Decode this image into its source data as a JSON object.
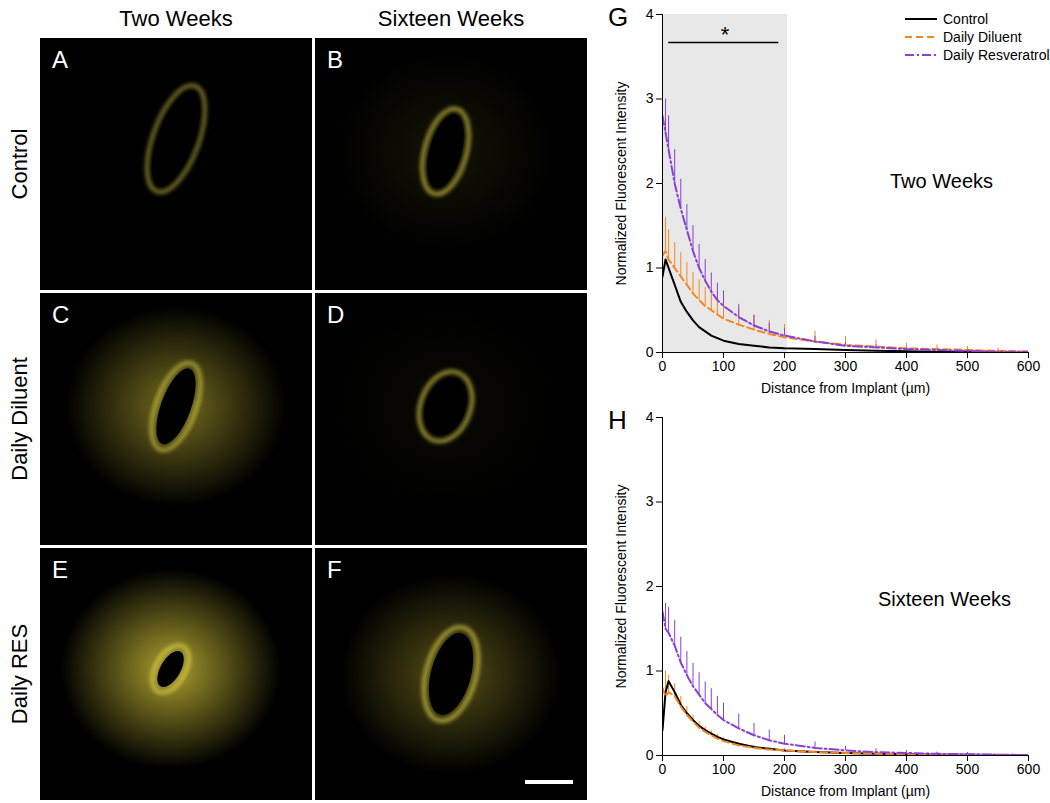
{
  "image_panels": {
    "column_titles": [
      "Two Weeks",
      "Sixteen Weeks"
    ],
    "row_titles": [
      "Control",
      "Daily Diluent",
      "Daily RES"
    ],
    "panel_labels": [
      [
        "A",
        "B"
      ],
      [
        "C",
        "D"
      ],
      [
        "E",
        "F"
      ]
    ]
  },
  "chart_data": [
    {
      "type": "line",
      "title": "G",
      "subtitle": "Two Weeks",
      "xlabel": "Distance from Implant (µm)",
      "ylabel": "Normalized Fluorescent Intensity",
      "x": [
        0,
        5,
        10,
        20,
        30,
        40,
        50,
        60,
        70,
        80,
        90,
        100,
        125,
        150,
        175,
        200,
        250,
        300,
        350,
        400,
        450,
        500,
        550,
        600
      ],
      "xlim": [
        0,
        600
      ],
      "xticks": [
        0,
        100,
        200,
        300,
        400,
        500,
        600
      ],
      "ylim": [
        0,
        4
      ],
      "yticks": [
        0,
        1,
        2,
        3,
        4
      ],
      "legend": "top-right",
      "significance": {
        "label": "*",
        "x_range": [
          0,
          205
        ]
      },
      "series": [
        {
          "name": "Control",
          "color": "#000000",
          "line_style": "solid",
          "values": [
            0.9,
            1.1,
            1.0,
            0.8,
            0.6,
            0.48,
            0.38,
            0.3,
            0.25,
            0.2,
            0.17,
            0.14,
            0.1,
            0.08,
            0.06,
            0.05,
            0.04,
            0.03,
            0.02,
            0.015,
            0.01,
            0.01,
            0.005,
            0
          ]
        },
        {
          "name": "Daily Diluent",
          "color": "#f7861f",
          "line_style": "dashed",
          "values": [
            1.15,
            1.2,
            1.1,
            1.0,
            0.9,
            0.8,
            0.7,
            0.62,
            0.55,
            0.5,
            0.45,
            0.4,
            0.33,
            0.27,
            0.22,
            0.18,
            0.13,
            0.09,
            0.07,
            0.05,
            0.04,
            0.03,
            0.02,
            0.01
          ],
          "errors": [
            0.45,
            0.4,
            0.35,
            0.3,
            0.28,
            0.26,
            0.25,
            0.24,
            0.22,
            0.21,
            0.2,
            0.2,
            0.18,
            0.17,
            0.16,
            0.15,
            0.12,
            0.1,
            0.08,
            0.06,
            0.05,
            0.04,
            0.03,
            0.02
          ]
        },
        {
          "name": "Daily Resveratrol",
          "color": "#8a3fd6",
          "line_style": "dashdot",
          "values": [
            2.8,
            2.6,
            2.4,
            2.0,
            1.7,
            1.45,
            1.2,
            1.0,
            0.85,
            0.72,
            0.62,
            0.55,
            0.42,
            0.32,
            0.25,
            0.2,
            0.13,
            0.08,
            0.06,
            0.04,
            0.03,
            0.02,
            0.01,
            0.01
          ],
          "errors": [
            0.45,
            0.4,
            0.4,
            0.4,
            0.35,
            0.3,
            0.3,
            0.28,
            0.25,
            0.22,
            0.2,
            0.18,
            0.15,
            0.12,
            0.1,
            0.08,
            0.06,
            0.04,
            0.03,
            0.02,
            0.02,
            0.01,
            0.01,
            0.01
          ]
        }
      ]
    },
    {
      "type": "line",
      "title": "H",
      "subtitle": "Sixteen Weeks",
      "xlabel": "Distance from Implant (µm)",
      "ylabel": "Normalized Fluorescent Intensity",
      "x": [
        0,
        5,
        10,
        20,
        30,
        40,
        50,
        60,
        70,
        80,
        90,
        100,
        125,
        150,
        175,
        200,
        250,
        300,
        350,
        400,
        450,
        500,
        550,
        600
      ],
      "xlim": [
        0,
        600
      ],
      "xticks": [
        0,
        100,
        200,
        300,
        400,
        500,
        600
      ],
      "ylim": [
        0,
        4
      ],
      "yticks": [
        0,
        1,
        2,
        3,
        4
      ],
      "series": [
        {
          "name": "Control",
          "color": "#000000",
          "line_style": "solid",
          "values": [
            0.3,
            0.75,
            0.88,
            0.75,
            0.6,
            0.5,
            0.42,
            0.35,
            0.3,
            0.26,
            0.22,
            0.19,
            0.14,
            0.1,
            0.08,
            0.06,
            0.04,
            0.03,
            0.02,
            0.015,
            0.01,
            0.008,
            0.005,
            0
          ]
        },
        {
          "name": "Daily Diluent",
          "color": "#f7861f",
          "line_style": "dashed",
          "values": [
            0.8,
            0.7,
            0.75,
            0.7,
            0.58,
            0.48,
            0.4,
            0.33,
            0.28,
            0.24,
            0.2,
            0.17,
            0.12,
            0.09,
            0.07,
            0.06,
            0.04,
            0.03,
            0.02,
            0.015,
            0.01,
            0.008,
            0.005,
            0
          ],
          "errors": [
            0.35,
            0.3,
            0.2,
            0.15,
            0.12,
            0.1,
            0.08,
            0.07,
            0.06,
            0.05,
            0.05,
            0.04,
            0.03,
            0.03,
            0.02,
            0.02,
            0.02,
            0.01,
            0.01,
            0.01,
            0.01,
            0.01,
            0.01,
            0.01
          ]
        },
        {
          "name": "Daily Resveratrol",
          "color": "#8a3fd6",
          "line_style": "dashdot",
          "values": [
            1.7,
            1.5,
            1.45,
            1.3,
            1.1,
            0.95,
            0.82,
            0.72,
            0.62,
            0.55,
            0.48,
            0.42,
            0.32,
            0.24,
            0.18,
            0.14,
            0.09,
            0.06,
            0.04,
            0.03,
            0.02,
            0.015,
            0.01,
            0.005
          ],
          "errors": [
            0.3,
            0.3,
            0.3,
            0.3,
            0.3,
            0.28,
            0.27,
            0.26,
            0.25,
            0.24,
            0.22,
            0.2,
            0.17,
            0.14,
            0.12,
            0.1,
            0.07,
            0.05,
            0.04,
            0.03,
            0.02,
            0.02,
            0.01,
            0.01
          ]
        }
      ]
    }
  ]
}
